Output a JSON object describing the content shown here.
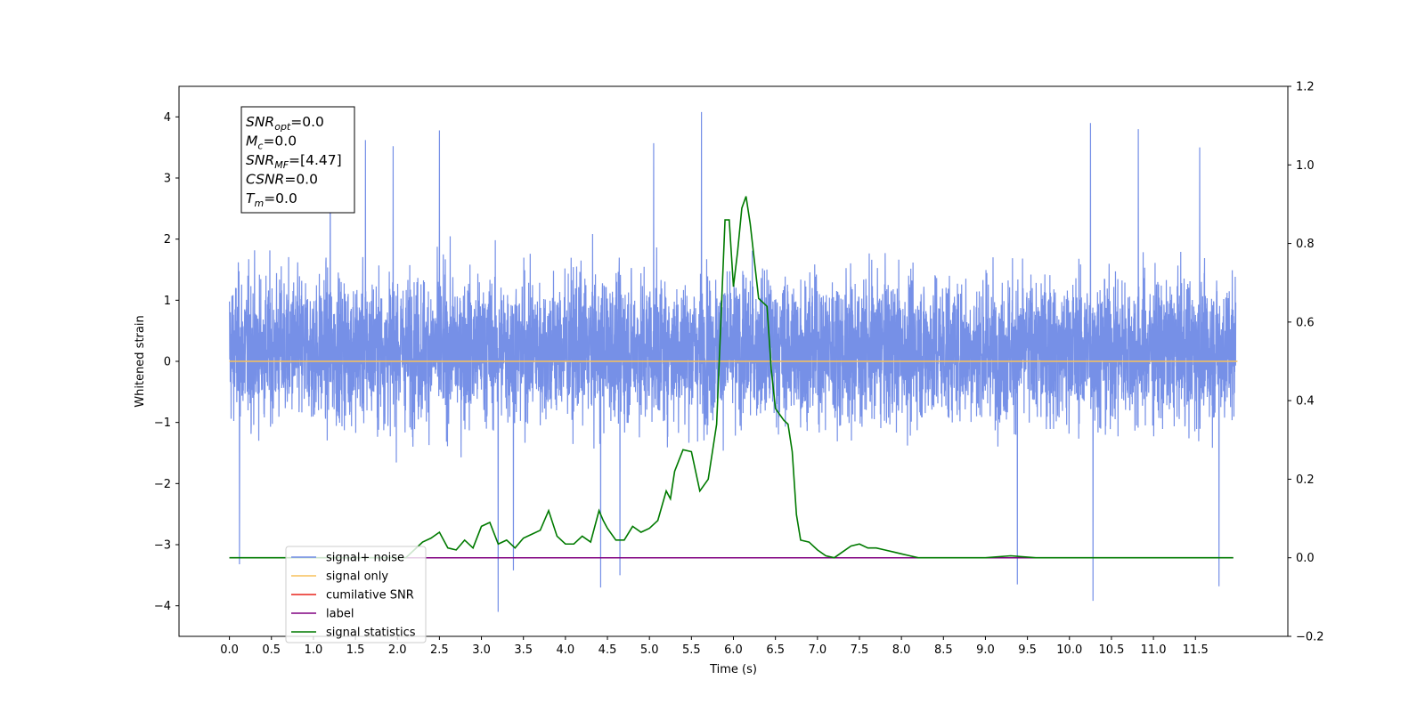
{
  "chart_data": {
    "type": "line",
    "xlabel": "Time (s)",
    "ylabel": "Whitened strain",
    "xlim": [
      -0.6,
      12.6
    ],
    "ylim": [
      -4.5,
      4.5
    ],
    "y2lim": [
      -0.2,
      1.2
    ],
    "x_ticks": [
      0.0,
      0.5,
      1.0,
      1.5,
      2.0,
      2.5,
      3.0,
      3.5,
      4.0,
      4.5,
      5.0,
      5.5,
      6.0,
      6.5,
      7.0,
      7.5,
      8.0,
      8.5,
      9.0,
      9.5,
      10.0,
      10.5,
      11.0,
      11.5
    ],
    "x_tick_labels": [
      "0.0",
      "0.5",
      "1.0",
      "1.5",
      "2.0",
      "2.5",
      "3.0",
      "3.5",
      "4.0",
      "4.5",
      "5.0",
      "5.5",
      "6.0",
      "6.5",
      "7.0",
      "7.5",
      "8.0",
      "8.5",
      "9.0",
      "9.5",
      "10.0",
      "10.5",
      "11.0",
      "11.5"
    ],
    "y_ticks": [
      4,
      3,
      2,
      1,
      0,
      -1,
      -2,
      -3,
      -4
    ],
    "y_tick_labels": [
      "4",
      "3",
      "2",
      "1",
      "0",
      "−1",
      "−2",
      "−3",
      "−4"
    ],
    "y2_ticks": [
      1.2,
      1.0,
      0.8,
      0.6,
      0.4,
      0.2,
      0.0,
      -0.2
    ],
    "y2_tick_labels": [
      "1.2",
      "1.0",
      "0.8",
      "0.6",
      "0.4",
      "0.2",
      "0.0",
      "−0.2"
    ],
    "grid": false,
    "legend_position": "lower-left",
    "noise": {
      "x_start": 0.0,
      "x_end": 11.98,
      "typical_range": [
        -1.9,
        2.3
      ],
      "peak_spikes": [
        {
          "x": 1.2,
          "y": 3.75
        },
        {
          "x": 1.62,
          "y": 3.62
        },
        {
          "x": 1.95,
          "y": 3.52
        },
        {
          "x": 2.5,
          "y": 3.78
        },
        {
          "x": 3.2,
          "y": -4.1
        },
        {
          "x": 5.05,
          "y": 3.57
        },
        {
          "x": 5.62,
          "y": 4.08
        },
        {
          "x": 9.38,
          "y": -3.65
        },
        {
          "x": 10.25,
          "y": 3.9
        },
        {
          "x": 10.28,
          "y": -3.92
        },
        {
          "x": 10.82,
          "y": 3.8
        },
        {
          "x": 11.55,
          "y": 3.5
        },
        {
          "x": 11.78,
          "y": -3.68
        },
        {
          "x": 4.42,
          "y": -3.7
        },
        {
          "x": 4.65,
          "y": -3.5
        },
        {
          "x": 3.38,
          "y": -3.42
        },
        {
          "x": 0.12,
          "y": -3.32
        }
      ]
    },
    "series": [
      {
        "name": "signal+ noise",
        "color": "#6f8ae6",
        "axis": "left",
        "values": "noise"
      },
      {
        "name": "signal only",
        "color": "#f7c15c",
        "axis": "left",
        "x": [
          0.0,
          12.0
        ],
        "y": [
          0.0,
          0.0
        ]
      },
      {
        "name": "cumilative SNR",
        "color": "#e8231c",
        "axis": "left",
        "x": [],
        "y": []
      },
      {
        "name": "label",
        "color": "#800080",
        "axis": "right",
        "x": [
          0.0,
          11.95
        ],
        "y": [
          0.0,
          0.0
        ]
      },
      {
        "name": "signal statistics",
        "color": "#007a00",
        "axis": "right",
        "x": [
          0.0,
          2.1,
          2.2,
          2.3,
          2.4,
          2.5,
          2.6,
          2.7,
          2.8,
          2.9,
          3.0,
          3.1,
          3.2,
          3.3,
          3.4,
          3.5,
          3.6,
          3.7,
          3.8,
          3.9,
          4.0,
          4.1,
          4.2,
          4.3,
          4.4,
          4.45,
          4.5,
          4.6,
          4.7,
          4.8,
          4.9,
          5.0,
          5.1,
          5.2,
          5.25,
          5.3,
          5.4,
          5.5,
          5.6,
          5.7,
          5.8,
          5.9,
          5.95,
          6.0,
          6.05,
          6.1,
          6.15,
          6.2,
          6.3,
          6.4,
          6.45,
          6.5,
          6.6,
          6.65,
          6.7,
          6.75,
          6.8,
          6.9,
          7.0,
          7.1,
          7.2,
          7.3,
          7.4,
          7.5,
          7.6,
          7.7,
          7.8,
          7.9,
          8.0,
          8.1,
          8.2,
          8.3,
          8.4,
          8.5,
          8.6,
          8.7,
          9.0,
          9.3,
          9.6,
          11.95
        ],
        "y": [
          0.0,
          0.0,
          0.02,
          0.04,
          0.05,
          0.065,
          0.025,
          0.02,
          0.045,
          0.025,
          0.08,
          0.09,
          0.035,
          0.045,
          0.025,
          0.05,
          0.06,
          0.07,
          0.12,
          0.055,
          0.035,
          0.035,
          0.055,
          0.04,
          0.12,
          0.095,
          0.075,
          0.045,
          0.045,
          0.08,
          0.065,
          0.075,
          0.095,
          0.17,
          0.15,
          0.22,
          0.275,
          0.27,
          0.17,
          0.2,
          0.34,
          0.86,
          0.86,
          0.69,
          0.78,
          0.89,
          0.92,
          0.85,
          0.66,
          0.64,
          0.48,
          0.38,
          0.35,
          0.34,
          0.27,
          0.11,
          0.045,
          0.04,
          0.02,
          0.005,
          0.0,
          0.015,
          0.03,
          0.035,
          0.025,
          0.025,
          0.02,
          0.015,
          0.01,
          0.005,
          0.0,
          0.0,
          0.0,
          0.0,
          0.0,
          0.0,
          0.0,
          0.005,
          0.0,
          0.0
        ]
      }
    ],
    "info_box": [
      {
        "sym": "SNR",
        "sub": "opt",
        "rest": "=0.0"
      },
      {
        "sym": "M",
        "sub": "c",
        "rest": "=0.0"
      },
      {
        "sym": "SNR",
        "sub": "MF",
        "rest": "=[4.47]"
      },
      {
        "sym": "CSNR",
        "sub": "",
        "rest": "=0.0"
      },
      {
        "sym": "T",
        "sub": "m",
        "rest": "=0.0"
      }
    ],
    "legend": [
      {
        "label": "signal+ noise",
        "color": "#6f8ae6"
      },
      {
        "label": "signal only",
        "color": "#f7c15c"
      },
      {
        "label": "cumilative SNR",
        "color": "#e8231c"
      },
      {
        "label": "label",
        "color": "#800080"
      },
      {
        "label": "signal statistics",
        "color": "#007a00"
      }
    ]
  }
}
